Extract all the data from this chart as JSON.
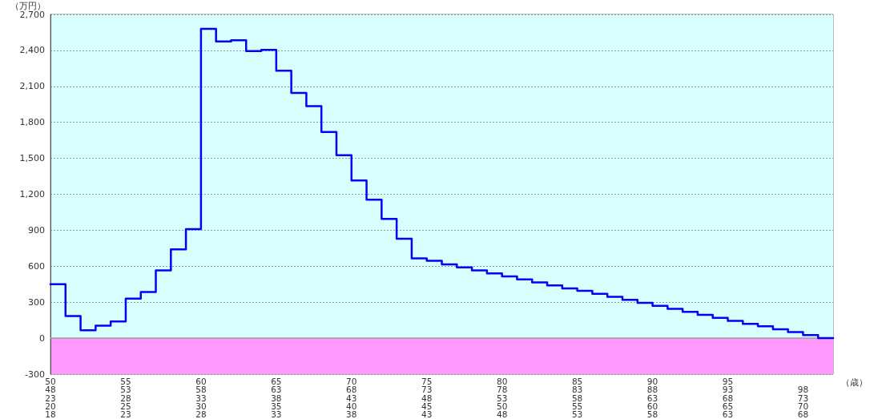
{
  "chart_data": {
    "type": "step",
    "xlabel": "（歳）",
    "ylabel": "（万円）",
    "categories": [
      "50\n48\n23\n20\n18",
      null,
      null,
      null,
      null,
      "55\n53\n28\n25\n23",
      null,
      null,
      null,
      null,
      "60\n58\n33\n30\n28",
      null,
      null,
      null,
      null,
      "65\n63\n38\n35\n33",
      null,
      null,
      null,
      null,
      "70\n68\n43\n40\n38",
      null,
      null,
      null,
      null,
      "75\n73\n48\n45\n43",
      null,
      null,
      null,
      null,
      "80\n78\n53\n50\n48",
      null,
      null,
      null,
      null,
      "85\n83\n58\n55\n53",
      null,
      null,
      null,
      null,
      "90\n88\n63\n60\n58",
      null,
      null,
      null,
      null,
      "95\n93\n68\n65\n63",
      null,
      null,
      null,
      null,
      "\n98\n73\n70\n68",
      null,
      null
    ],
    "series": [
      {
        "color": "#0000ff",
        "values": [
          450,
          185,
          65,
          105,
          140,
          330,
          385,
          565,
          740,
          910,
          2580,
          2475,
          2485,
          2395,
          2405,
          2230,
          2045,
          1935,
          1720,
          1525,
          1315,
          1155,
          995,
          830,
          665,
          645,
          615,
          590,
          565,
          540,
          515,
          490,
          465,
          440,
          415,
          395,
          370,
          345,
          320,
          295,
          270,
          245,
          220,
          195,
          170,
          145,
          120,
          100,
          75,
          50,
          25,
          0,
          0
        ]
      }
    ],
    "ylim": [
      -300,
      2700
    ],
    "yticks": [
      -300,
      0,
      300,
      600,
      900,
      {
        "value": 1200,
        "label": "1,200"
      },
      {
        "value": 1500,
        "label": "1,500"
      },
      {
        "value": 1800,
        "label": "1,800"
      },
      {
        "value": 2100,
        "label": "2,100"
      },
      {
        "value": 2400,
        "label": "2,400"
      },
      {
        "value": 2700,
        "label": "2,700"
      }
    ],
    "grid": "y",
    "marker": "none",
    "line_style": "solid",
    "bands": [
      {
        "axis": "y",
        "from": 0,
        "to": 2700,
        "color": "#d9ffff"
      },
      {
        "axis": "y",
        "from": -300,
        "to": 0,
        "color": "#ff99ff"
      }
    ],
    "ref_lines": [
      {
        "axis": "y",
        "value": 0,
        "color": "#a0a0a0"
      }
    ]
  }
}
